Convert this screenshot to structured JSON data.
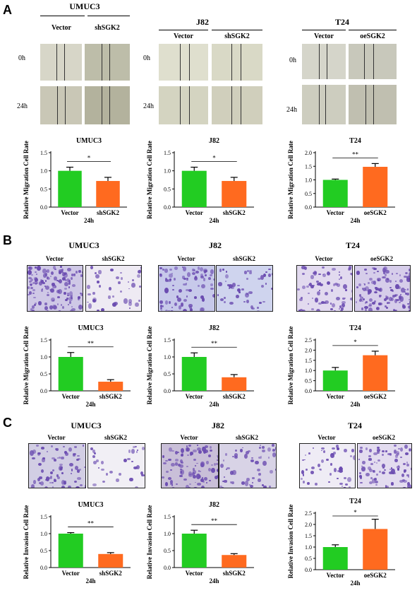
{
  "panels": {
    "A": {
      "letter": "A",
      "groups": [
        {
          "title": "UMUC3",
          "ctrl": "Vector",
          "treat": "shSGK2",
          "time0": "0h",
          "time24": "24h"
        },
        {
          "title": "J82",
          "ctrl": "Vector",
          "treat": "shSGK2",
          "time0": "0h",
          "time24": "24h"
        },
        {
          "title": "T24",
          "ctrl": "Vector",
          "treat": "oeSGK2",
          "time0": "0h",
          "time24": "24h"
        }
      ]
    },
    "B": {
      "letter": "B",
      "groups": [
        {
          "title": "UMUC3",
          "ctrl": "Vector",
          "treat": "shSGK2"
        },
        {
          "title": "J82",
          "ctrl": "Vector",
          "treat": "shSGK2"
        },
        {
          "title": "T24",
          "ctrl": "Vector",
          "treat": "oeSGK2"
        }
      ]
    },
    "C": {
      "letter": "C",
      "groups": [
        {
          "title": "UMUC3",
          "ctrl": "Vector",
          "treat": "shSGK2"
        },
        {
          "title": "J82",
          "ctrl": "Vector",
          "treat": "shSGK2"
        },
        {
          "title": "T24",
          "ctrl": "Vector",
          "treat": "oeSGK2"
        }
      ]
    }
  },
  "colors": {
    "control": "#22cc22",
    "treatment": "#ff6a1f",
    "stain": "#6a4bb0",
    "well": "#e7e7e7"
  },
  "chart_data": [
    {
      "id": "A1",
      "type": "bar",
      "title": "UMUC3",
      "ylabel": "Relative Migration Cell Rate",
      "xlabel": "24h",
      "categories": [
        "Vector",
        "shSGK2"
      ],
      "values": [
        1.0,
        0.72
      ],
      "errors": [
        0.1,
        0.1
      ],
      "ylim": [
        0,
        1.5
      ],
      "yticks": [
        "0.0",
        "0.5",
        "1.0",
        "1.5"
      ],
      "sig": "*"
    },
    {
      "id": "A2",
      "type": "bar",
      "title": "J82",
      "ylabel": "Relative Migration Cell Rate",
      "xlabel": "24h",
      "categories": [
        "Vector",
        "shSGK2"
      ],
      "values": [
        1.0,
        0.72
      ],
      "errors": [
        0.1,
        0.1
      ],
      "ylim": [
        0,
        1.5
      ],
      "yticks": [
        "0.0",
        "0.5",
        "1.0",
        "1.5"
      ],
      "sig": "*"
    },
    {
      "id": "A3",
      "type": "bar",
      "title": "T24",
      "ylabel": "Relative Migration Cell Rate",
      "xlabel": "24h",
      "categories": [
        "Vector",
        "oeSGK2"
      ],
      "values": [
        1.0,
        1.48
      ],
      "errors": [
        0.03,
        0.12
      ],
      "ylim": [
        0,
        2.0
      ],
      "yticks": [
        "0.0",
        "0.5",
        "1.0",
        "1.5",
        "2.0"
      ],
      "sig": "**"
    },
    {
      "id": "B1",
      "type": "bar",
      "title": "UMUC3",
      "ylabel": "Relative Migration Cell Rate",
      "xlabel": "24h",
      "categories": [
        "Vector",
        "shSGK2"
      ],
      "values": [
        1.0,
        0.27
      ],
      "errors": [
        0.13,
        0.06
      ],
      "ylim": [
        0,
        1.5
      ],
      "yticks": [
        "0.0",
        "0.5",
        "1.0",
        "1.5"
      ],
      "sig": "**"
    },
    {
      "id": "B2",
      "type": "bar",
      "title": "J82",
      "ylabel": "Relative Migration Cell Rate",
      "xlabel": "24h",
      "categories": [
        "Vector",
        "shSGK2"
      ],
      "values": [
        1.0,
        0.4
      ],
      "errors": [
        0.12,
        0.08
      ],
      "ylim": [
        0,
        1.5
      ],
      "yticks": [
        "0.0",
        "0.5",
        "1.0",
        "1.5"
      ],
      "sig": "**"
    },
    {
      "id": "B3",
      "type": "bar",
      "title": "T24",
      "ylabel": "Relative Migration Cell Rate",
      "xlabel": "24h",
      "categories": [
        "Vector",
        "oeSGK2"
      ],
      "values": [
        1.0,
        1.75
      ],
      "errors": [
        0.15,
        0.2
      ],
      "ylim": [
        0,
        2.5
      ],
      "yticks": [
        "0.0",
        "0.5",
        "1.0",
        "1.5",
        "2.0",
        "2.5"
      ],
      "sig": "*"
    },
    {
      "id": "C1",
      "type": "bar",
      "title": "UMUC3",
      "ylabel": "Relative Invasion Cell Rate",
      "xlabel": "24h",
      "categories": [
        "Vector",
        "shSGK2"
      ],
      "values": [
        1.0,
        0.4
      ],
      "errors": [
        0.03,
        0.04
      ],
      "ylim": [
        0,
        1.5
      ],
      "yticks": [
        "0.0",
        "0.5",
        "1.0",
        "1.5"
      ],
      "sig": "**"
    },
    {
      "id": "C2",
      "type": "bar",
      "title": "J82",
      "ylabel": "Relative Invasion Cell Rate",
      "xlabel": "24h",
      "categories": [
        "Vector",
        "shSGK2"
      ],
      "values": [
        1.0,
        0.37
      ],
      "errors": [
        0.1,
        0.04
      ],
      "ylim": [
        0,
        1.5
      ],
      "yticks": [
        "0.0",
        "0.5",
        "1.0",
        "1.5"
      ],
      "sig": "**"
    },
    {
      "id": "C3",
      "type": "bar",
      "title": "T24",
      "ylabel": "Relative Invasion Cell Rate",
      "xlabel": "24h",
      "categories": [
        "Vector",
        "oeSGK2"
      ],
      "values": [
        1.0,
        1.8
      ],
      "errors": [
        0.1,
        0.43
      ],
      "ylim": [
        0,
        2.5
      ],
      "yticks": [
        "0.0",
        "0.5",
        "1.0",
        "1.5",
        "2.0",
        "2.5"
      ],
      "sig": "*"
    }
  ]
}
